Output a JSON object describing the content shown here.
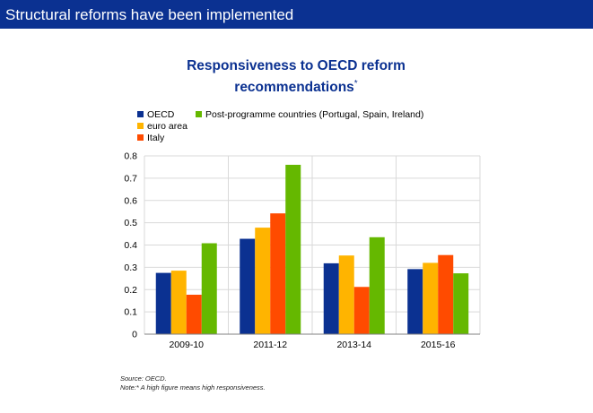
{
  "header": {
    "title": "Structural reforms have been implemented"
  },
  "chart_data": {
    "type": "bar",
    "title": "Responsiveness to OECD reform recommendations",
    "title_marker": "*",
    "categories": [
      "2009-10",
      "2011-12",
      "2013-14",
      "2015-16"
    ],
    "series": [
      {
        "name": "OECD",
        "color": "#0b3191",
        "values": [
          0.275,
          0.428,
          0.318,
          0.292
        ]
      },
      {
        "name": "euro area",
        "color": "#ffb400",
        "values": [
          0.285,
          0.478,
          0.353,
          0.32
        ]
      },
      {
        "name": "Italy",
        "color": "#ff4b00",
        "values": [
          0.177,
          0.542,
          0.212,
          0.355
        ]
      },
      {
        "name": "Post-programme countries (Portugal, Spain, Ireland)",
        "color": "#65b800",
        "values": [
          0.408,
          0.76,
          0.435,
          0.273
        ]
      }
    ],
    "ylim": [
      0,
      0.8
    ],
    "yticks": [
      "0",
      "0.1",
      "0.2",
      "0.3",
      "0.4",
      "0.5",
      "0.6",
      "0.7",
      "0.8"
    ],
    "grid": true,
    "xlabel": "",
    "ylabel": ""
  },
  "notes": {
    "source": "Source: OECD.",
    "note": "Note:* A high figure means high responsiveness."
  }
}
